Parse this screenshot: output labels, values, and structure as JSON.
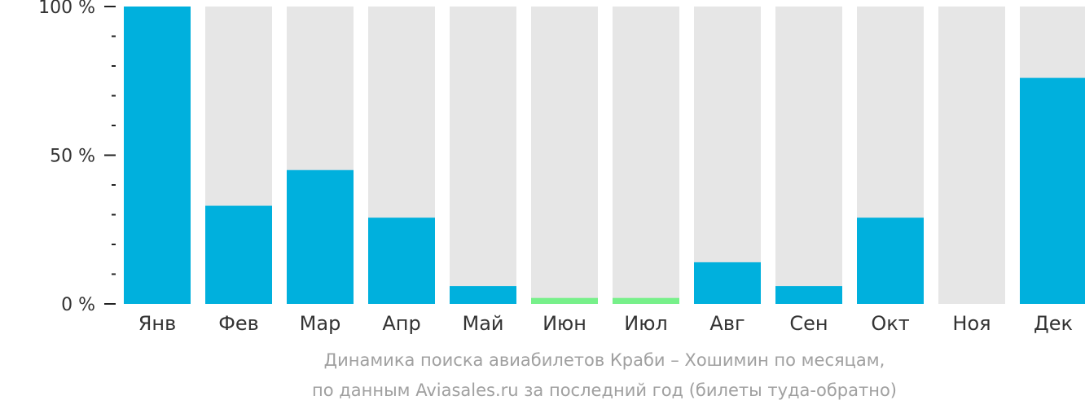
{
  "chart_data": {
    "type": "bar",
    "categories": [
      "Янв",
      "Фев",
      "Мар",
      "Апр",
      "Май",
      "Июн",
      "Июл",
      "Авг",
      "Сен",
      "Окт",
      "Ноя",
      "Дек"
    ],
    "values": [
      100,
      33,
      45,
      29,
      6,
      2,
      2,
      14,
      6,
      29,
      0,
      76
    ],
    "bar_colors": [
      "#00b0dd",
      "#00b0dd",
      "#00b0dd",
      "#00b0dd",
      "#00b0dd",
      "#77f08a",
      "#77f08a",
      "#00b0dd",
      "#00b0dd",
      "#00b0dd",
      "#00b0dd",
      "#00b0dd"
    ],
    "background_bar_color": "#e6e6e6",
    "ylim": [
      0,
      100
    ],
    "y_ticks": [
      "0 %",
      "50 %",
      "100 %"
    ],
    "y_tick_values": [
      0,
      50,
      100
    ],
    "y_minor_tick_step": 10,
    "grid": false,
    "caption_lines": [
      "Динамика поиска авиабилетов Краби – Хошимин по месяцам,",
      "по данным Aviasales.ru за последний год (билеты туда-обратно)"
    ]
  }
}
